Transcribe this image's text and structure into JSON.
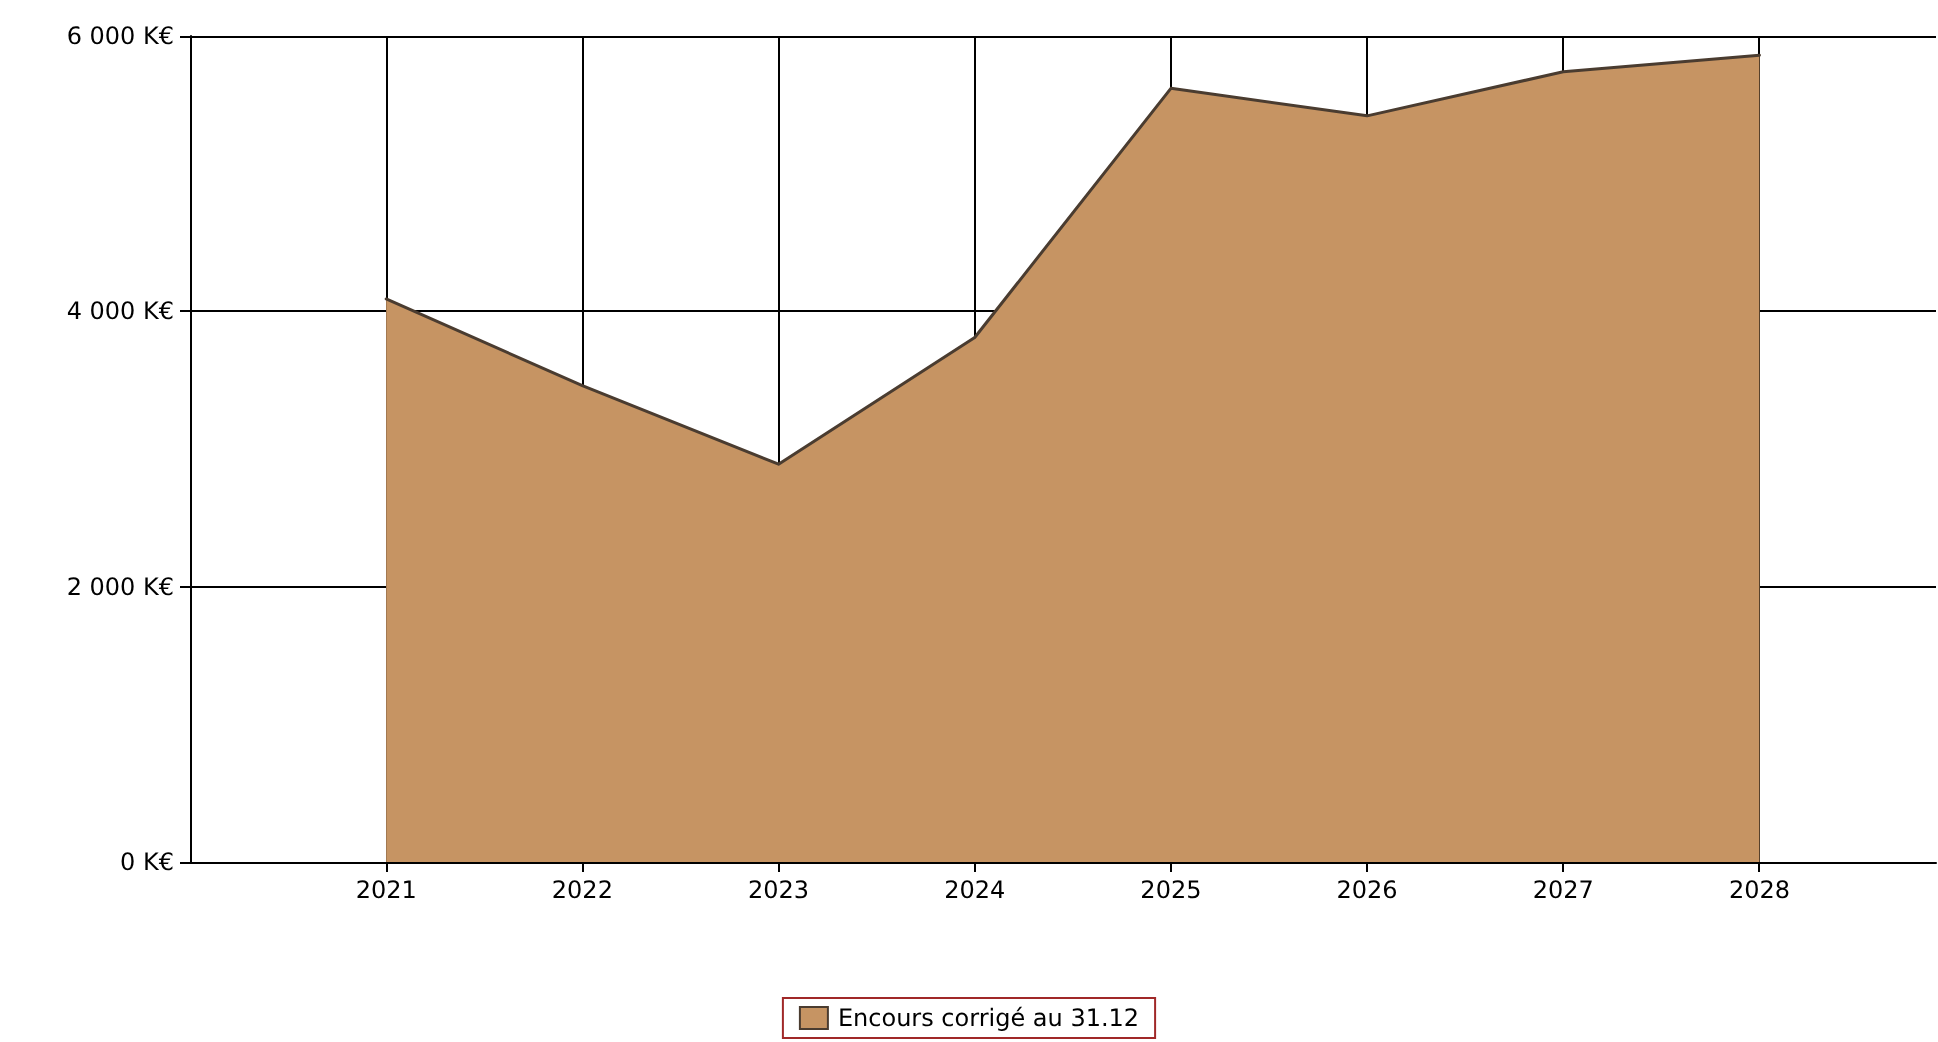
{
  "chart_data": {
    "type": "area",
    "x": [
      2021,
      2022,
      2023,
      2024,
      2025,
      2026,
      2027,
      2028
    ],
    "series": [
      {
        "name": "Encours corrigé au 31.12",
        "color": "#c69463",
        "values": [
          4090,
          3460,
          2890,
          3810,
          5620,
          5420,
          5740,
          5860
        ]
      }
    ],
    "xlim": [
      2020,
      2028.9
    ],
    "xticks": [
      2021,
      2022,
      2023,
      2024,
      2025,
      2026,
      2027,
      2028
    ],
    "ylim": [
      0,
      6000
    ],
    "yticks": [
      {
        "value": 0,
        "label": "0 K€"
      },
      {
        "value": 2000,
        "label": "2 000 K€"
      },
      {
        "value": 4000,
        "label": "4 000 K€"
      },
      {
        "value": 6000,
        "label": "6 000 K€"
      }
    ],
    "grid": true,
    "legend": "bottom",
    "marker": "none",
    "line_style": "solid"
  }
}
